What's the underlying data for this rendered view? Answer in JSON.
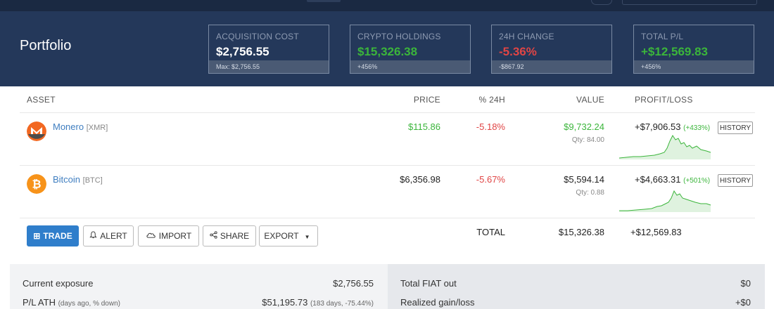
{
  "header": {
    "title": "Portfolio",
    "cards": [
      {
        "label": "ACQUISITION COST",
        "value": "$2,756.55",
        "sub": "Max: $2,756.55",
        "tone": "white"
      },
      {
        "label": "CRYPTO HOLDINGS",
        "value": "$15,326.38",
        "sub": "+456%",
        "tone": "green"
      },
      {
        "label": "24H CHANGE",
        "value": "-5.36%",
        "sub": "-$867.92",
        "tone": "red"
      },
      {
        "label": "TOTAL P/L",
        "value": "+$12,569.83",
        "sub": "+456%",
        "tone": "green"
      }
    ]
  },
  "table": {
    "columns": {
      "asset": "ASSET",
      "price": "PRICE",
      "change": "% 24H",
      "value": "VALUE",
      "pl": "PROFIT/LOSS"
    },
    "rows": [
      {
        "name": "Monero",
        "symbol": "[XMR]",
        "price": "$115.86",
        "change": "-5.18%",
        "value": "$9,732.24",
        "qty": "Qty: 84.00",
        "pl": "+$7,906.53",
        "pl_pct": "(+433%)",
        "history": "HISTORY",
        "icon": "monero-icon",
        "color": "#f26822"
      },
      {
        "name": "Bitcoin",
        "symbol": "[BTC]",
        "price": "$6,356.98",
        "change": "-5.67%",
        "value": "$5,594.14",
        "qty": "Qty: 0.88",
        "pl": "+$4,663.31",
        "pl_pct": "(+501%)",
        "history": "HISTORY",
        "icon": "bitcoin-icon",
        "color": "#f7931a"
      }
    ],
    "total_label": "TOTAL",
    "total_value": "$15,326.38",
    "total_pl": "+$12,569.83"
  },
  "actions": {
    "trade": "TRADE",
    "alert": "ALERT",
    "import": "IMPORT",
    "share": "SHARE",
    "export": "EXPORT"
  },
  "summary": {
    "left": [
      {
        "label": "Current exposure",
        "note": "",
        "value": "$2,756.55"
      },
      {
        "label": "P/L ATH",
        "note": "(days ago, % down)",
        "value": "$51,195.73",
        "value_note": "(183 days, -75.44%)"
      }
    ],
    "right": [
      {
        "label": "Total FIAT out",
        "value": "$0"
      },
      {
        "label": "Realized gain/loss",
        "value": "+$0"
      }
    ]
  },
  "colors": {
    "accent": "#2f7ecb",
    "positive": "#3bb53b",
    "negative": "#e04545",
    "header_bg": "#24385a"
  }
}
